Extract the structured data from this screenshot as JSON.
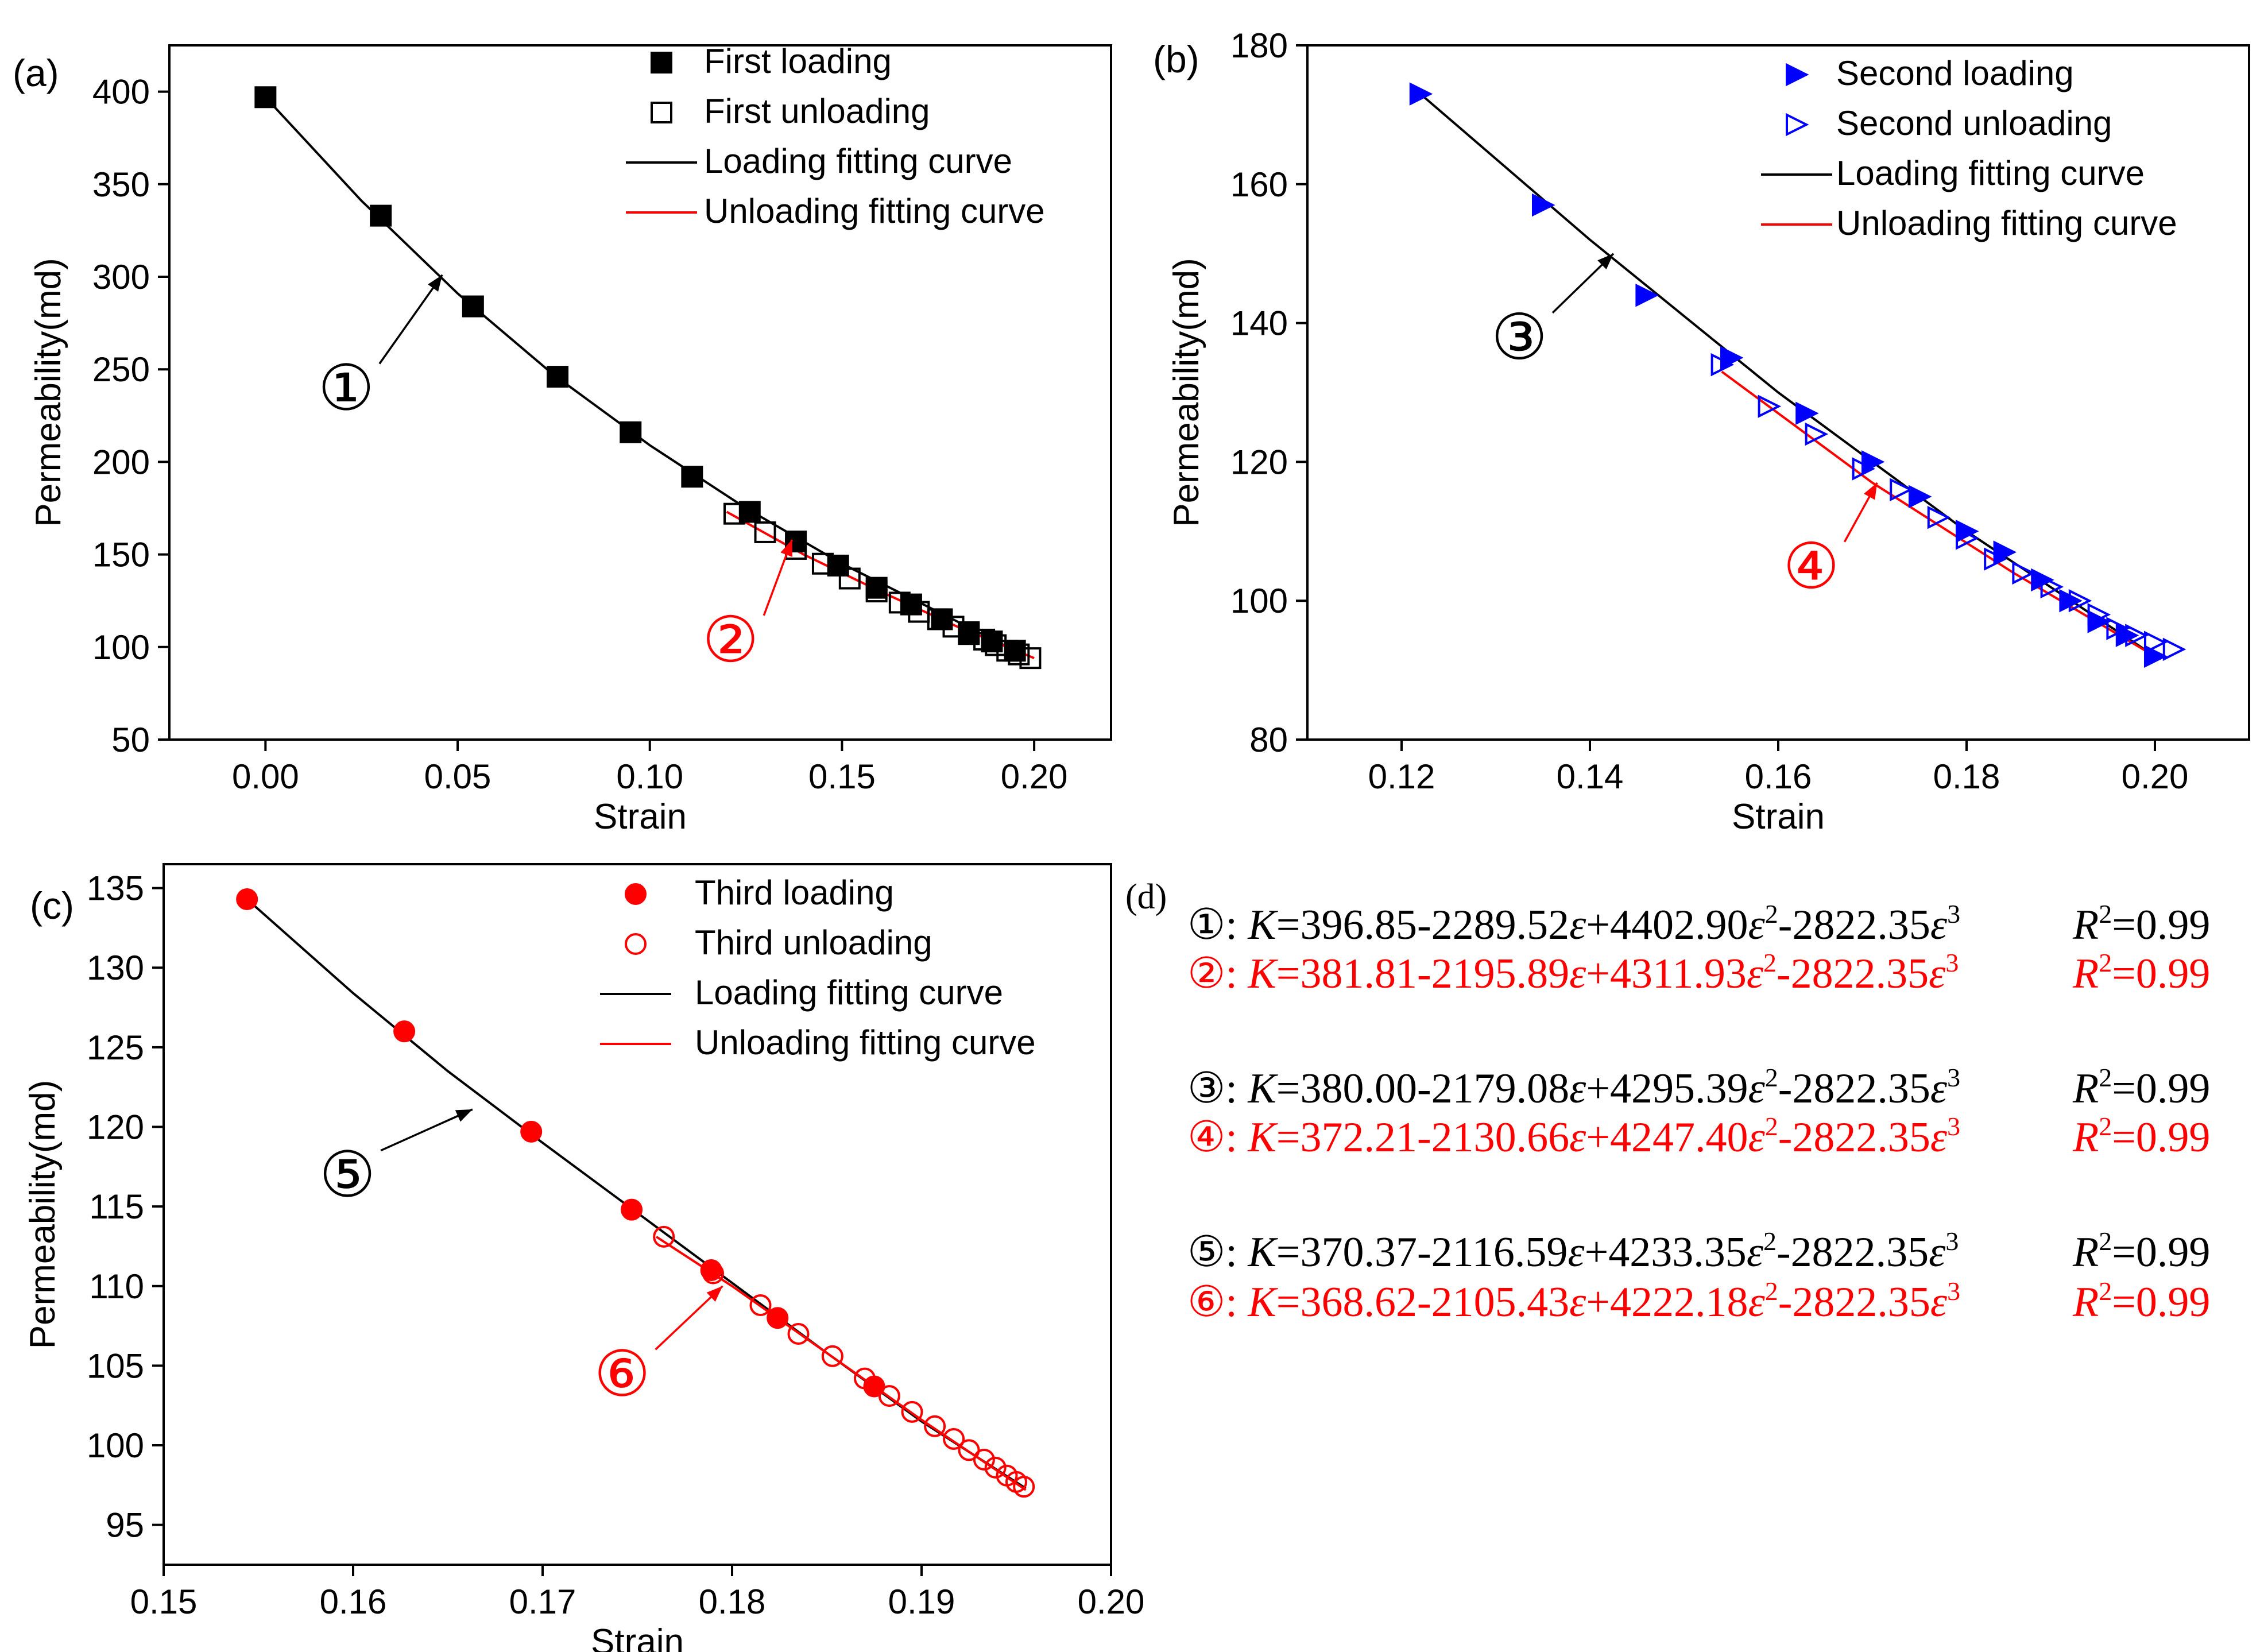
{
  "colors": {
    "black": "#000000",
    "red": "#ff0000",
    "blue": "#0000ff",
    "white": "#ffffff"
  },
  "chart_data": [
    {
      "panel": "(a)",
      "type": "scatter",
      "xlabel": "Strain",
      "ylabel": "Permeability(md)",
      "xlim": [
        -0.025,
        0.22
      ],
      "ylim": [
        50,
        425
      ],
      "xticks": [
        "0.00",
        "0.05",
        "0.10",
        "0.15",
        "0.20"
      ],
      "yticks": [
        "50",
        "100",
        "150",
        "200",
        "250",
        "300",
        "350",
        "400"
      ],
      "legend_position": "top-right",
      "legend": [
        "First loading",
        "First unloading",
        "Loading fitting curve",
        "Unloading fitting curve"
      ],
      "series": [
        {
          "name": "First loading",
          "marker": "filled-square",
          "color": "#000000",
          "x": [
            0.0,
            0.03,
            0.054,
            0.076,
            0.095,
            0.111,
            0.126,
            0.138,
            0.149,
            0.159,
            0.168,
            0.176,
            0.183,
            0.189,
            0.195
          ],
          "y": [
            397,
            333,
            284,
            246,
            216,
            192,
            173,
            157,
            144,
            132,
            123,
            115,
            108,
            103,
            98
          ]
        },
        {
          "name": "First unloading",
          "marker": "open-square",
          "color": "#000000",
          "x": [
            0.122,
            0.13,
            0.138,
            0.145,
            0.152,
            0.159,
            0.165,
            0.17,
            0.175,
            0.179,
            0.183,
            0.187,
            0.19,
            0.193,
            0.196,
            0.199
          ],
          "y": [
            172,
            162,
            153,
            145,
            137,
            130,
            124,
            119,
            115,
            111,
            107,
            104,
            101,
            98,
            96,
            94
          ]
        },
        {
          "name": "Loading fitting curve",
          "line": "solid",
          "color": "#000000",
          "x": [
            0.0,
            0.025,
            0.05,
            0.075,
            0.1,
            0.125,
            0.15,
            0.175,
            0.195
          ],
          "y": [
            397,
            341,
            291,
            247,
            209,
            175,
            145,
            119,
            98
          ]
        },
        {
          "name": "Unloading fitting curve",
          "line": "solid",
          "color": "#ff0000",
          "x": [
            0.12,
            0.14,
            0.16,
            0.18,
            0.2
          ],
          "y": [
            173,
            150,
            130,
            111,
            94
          ]
        }
      ],
      "annotations": [
        {
          "label": "①",
          "color": "#000000",
          "text_at": [
            0.021,
            240
          ],
          "arrow_to": [
            0.046,
            301
          ]
        },
        {
          "label": "②",
          "color": "#ff0000",
          "text_at": [
            0.121,
            104
          ],
          "arrow_to": [
            0.137,
            158
          ]
        }
      ]
    },
    {
      "panel": "(b)",
      "type": "scatter",
      "xlabel": "Strain",
      "ylabel": "Permeability(md)",
      "xlim": [
        0.11,
        0.21
      ],
      "ylim": [
        80,
        180
      ],
      "xticks": [
        "0.12",
        "0.14",
        "0.16",
        "0.18",
        "0.20"
      ],
      "yticks": [
        "80",
        "100",
        "120",
        "140",
        "160",
        "180"
      ],
      "legend_position": "top-right",
      "legend": [
        "Second loading",
        "Second unloading",
        "Loading fitting curve",
        "Unloading fitting curve"
      ],
      "series": [
        {
          "name": "Second loading",
          "marker": "filled-triangle-right",
          "color": "#0000ff",
          "x": [
            0.122,
            0.135,
            0.146,
            0.155,
            0.163,
            0.17,
            0.175,
            0.18,
            0.184,
            0.188,
            0.191,
            0.194,
            0.197,
            0.2
          ],
          "y": [
            173,
            157,
            144,
            135,
            127,
            120,
            115,
            110,
            107,
            103,
            100,
            97,
            95,
            92
          ]
        },
        {
          "name": "Second unloading",
          "marker": "open-triangle-right",
          "color": "#0000ff",
          "x": [
            0.154,
            0.159,
            0.164,
            0.169,
            0.173,
            0.177,
            0.18,
            0.183,
            0.186,
            0.189,
            0.192,
            0.194,
            0.196,
            0.198,
            0.2,
            0.202
          ],
          "y": [
            134,
            128,
            124,
            119,
            116,
            112,
            109,
            106,
            104,
            102,
            100,
            98,
            96,
            95,
            94,
            93
          ]
        },
        {
          "name": "Loading fitting curve",
          "line": "solid",
          "color": "#000000",
          "x": [
            0.122,
            0.14,
            0.16,
            0.18,
            0.2
          ],
          "y": [
            173,
            152,
            130,
            110,
            92
          ]
        },
        {
          "name": "Unloading fitting curve",
          "line": "solid",
          "color": "#ff0000",
          "x": [
            0.154,
            0.17,
            0.185,
            0.2
          ],
          "y": [
            133,
            117,
            104,
            92
          ]
        }
      ],
      "annotations": [
        {
          "label": "③",
          "color": "#000000",
          "text_at": [
            0.1325,
            138
          ],
          "arrow_to": [
            0.1425,
            150
          ]
        },
        {
          "label": "④",
          "color": "#ff0000",
          "text_at": [
            0.1635,
            105
          ],
          "arrow_to": [
            0.1705,
            117
          ]
        }
      ]
    },
    {
      "panel": "(c)",
      "type": "scatter",
      "xlabel": "Strain",
      "ylabel": "Permeability(md)",
      "xlim": [
        0.15,
        0.2
      ],
      "ylim": [
        92.5,
        136.5
      ],
      "xticks": [
        "0.15",
        "0.16",
        "0.17",
        "0.18",
        "0.19",
        "0.20"
      ],
      "yticks": [
        "95",
        "100",
        "105",
        "110",
        "115",
        "120",
        "125",
        "130",
        "135"
      ],
      "legend_position": "top-right",
      "legend": [
        "Third loading",
        "Third unloading",
        "Loading fitting curve",
        "Unloading fitting curve"
      ],
      "series": [
        {
          "name": "Third loading",
          "marker": "filled-circle",
          "color": "#ff0000",
          "x": [
            0.1544,
            0.1627,
            0.1694,
            0.1747,
            0.1789,
            0.1824,
            0.1875
          ],
          "y": [
            134.3,
            126.0,
            119.7,
            114.8,
            111.0,
            108.0,
            103.7
          ]
        },
        {
          "name": "Third unloading",
          "marker": "open-circle",
          "color": "#ff0000",
          "x": [
            0.1764,
            0.179,
            0.1815,
            0.1835,
            0.1853,
            0.187,
            0.1883,
            0.1895,
            0.1907,
            0.1917,
            0.1925,
            0.1933,
            0.1939,
            0.1945,
            0.195,
            0.1954
          ],
          "y": [
            113.1,
            110.8,
            108.8,
            107.0,
            105.6,
            104.2,
            103.1,
            102.1,
            101.2,
            100.4,
            99.7,
            99.1,
            98.6,
            98.1,
            97.7,
            97.4
          ]
        },
        {
          "name": "Loading fitting curve",
          "line": "solid",
          "color": "#000000",
          "x": [
            0.1544,
            0.16,
            0.165,
            0.17,
            0.175,
            0.18,
            0.185,
            0.19,
            0.1955
          ],
          "y": [
            134.3,
            128.4,
            123.5,
            119.0,
            114.6,
            110.2,
            105.8,
            101.5,
            97.3
          ]
        },
        {
          "name": "Unloading fitting curve",
          "line": "solid",
          "color": "#ff0000",
          "x": [
            0.176,
            0.18,
            0.185,
            0.19,
            0.1955
          ],
          "y": [
            113.1,
            110.0,
            105.8,
            101.6,
            97.2
          ]
        }
      ],
      "annotations": [
        {
          "label": "⑤",
          "color": "#000000",
          "text_at": [
            0.1597,
            117
          ],
          "arrow_to": [
            0.1663,
            121.1
          ]
        },
        {
          "label": "⑥",
          "color": "#ff0000",
          "text_at": [
            0.1742,
            104.5
          ],
          "arrow_to": [
            0.1795,
            110.0
          ]
        }
      ]
    }
  ],
  "equations": {
    "label": "(d)",
    "items": [
      {
        "num": "①",
        "color": "#000000",
        "lhs": "K",
        "eq": "=396.85-2289.52",
        "a1": "+4402.90",
        "a2": "-2822.35",
        "r2": "=0.99"
      },
      {
        "num": "②",
        "color": "#ff0000",
        "lhs": "K",
        "eq": "=381.81-2195.89",
        "a1": "+4311.93",
        "a2": "-2822.35",
        "r2": "=0.99"
      },
      {
        "num": "③",
        "color": "#000000",
        "lhs": "K",
        "eq": "=380.00-2179.08",
        "a1": "+4295.39",
        "a2": "-2822.35",
        "r2": "=0.99"
      },
      {
        "num": "④",
        "color": "#ff0000",
        "lhs": "K",
        "eq": "=372.21-2130.66",
        "a1": "+4247.40",
        "a2": "-2822.35",
        "r2": "=0.99"
      },
      {
        "num": "⑤",
        "color": "#000000",
        "lhs": "K",
        "eq": "=370.37-2116.59",
        "a1": "+4233.35",
        "a2": "-2822.35",
        "r2": "=0.99"
      },
      {
        "num": "⑥",
        "color": "#ff0000",
        "lhs": "K",
        "eq": "=368.62-2105.43",
        "a1": "+4222.18",
        "a2": "-2822.35",
        "r2": "=0.99"
      }
    ],
    "epsilon": "ε",
    "r_symbol": "R",
    "sup2": "2",
    "sup3": "3"
  }
}
